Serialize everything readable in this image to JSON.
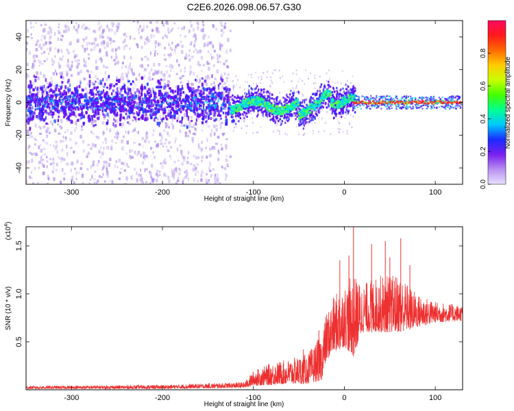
{
  "title": "C2E6.2026.098.06.57.G30",
  "colors": {
    "snr_line": "#ee3030",
    "spectrogram_base": "#5a00ff",
    "peak_trace": "#ff2a2a",
    "axis": "#000000"
  },
  "chart_data": [
    {
      "type": "heatmap",
      "xlabel": "Height of straight line (km)",
      "ylabel": "Frequency (Hz)",
      "xlim": [
        -350,
        130
      ],
      "ylim": [
        -50,
        50
      ],
      "x_ticks": [
        -300,
        -200,
        -100,
        0,
        100
      ],
      "y_ticks": [
        -40,
        -20,
        0,
        20,
        40
      ],
      "grid": false,
      "colorbar": {
        "label": "Normalized spectral amplitude",
        "range": [
          0,
          1
        ],
        "ticks": [
          "0.0",
          "0.2",
          "0.4",
          "0.6",
          "0.8"
        ],
        "colormap": [
          "#e6e0ff",
          "#b890f0",
          "#7a1ff0",
          "#1a2bff",
          "#00c8ff",
          "#00ff90",
          "#44ff00",
          "#c8ff00",
          "#ffcc00",
          "#ff6a00",
          "#ff1a1a",
          "#ff0a60"
        ]
      },
      "regions": [
        {
          "x_range": [
            -350,
            -125
          ],
          "note": "broad diffuse noise, strong band -10 to +10 Hz"
        },
        {
          "x_range": [
            -125,
            10
          ],
          "note": "cyan/green core near 0 Hz, wandering between -10 and +5 Hz"
        },
        {
          "x_range": [
            10,
            130
          ],
          "note": "narrow red peak at about 0 Hz"
        }
      ]
    },
    {
      "type": "line",
      "xlabel": "Height of straight line (km)",
      "ylabel": "SNR (10 * v/v)",
      "y_multiplier": "(x10",
      "y_multiplier_exp": "4",
      "y_multiplier_close": ")",
      "xlim": [
        -350,
        130
      ],
      "ylim": [
        0,
        1.7
      ],
      "x_ticks": [
        -300,
        -200,
        -100,
        0,
        100
      ],
      "y_ticks": [
        "0.5",
        "1.0",
        "1.5"
      ],
      "y_tick_values": [
        0.5,
        1.0,
        1.5
      ],
      "grid": false,
      "series": [
        {
          "color": "#ee3030",
          "envelope": [
            {
              "x": -350,
              "lo": 0.01,
              "hi": 0.04
            },
            {
              "x": -200,
              "lo": 0.01,
              "hi": 0.05
            },
            {
              "x": -110,
              "lo": 0.02,
              "hi": 0.08
            },
            {
              "x": -100,
              "lo": 0.04,
              "hi": 0.2
            },
            {
              "x": -80,
              "lo": 0.05,
              "hi": 0.28
            },
            {
              "x": -60,
              "lo": 0.06,
              "hi": 0.32
            },
            {
              "x": -40,
              "lo": 0.06,
              "hi": 0.38
            },
            {
              "x": -25,
              "lo": 0.1,
              "hi": 0.58
            },
            {
              "x": -20,
              "lo": 0.3,
              "hi": 0.8
            },
            {
              "x": -10,
              "lo": 0.4,
              "hi": 1.0
            },
            {
              "x": 0,
              "lo": 0.45,
              "hi": 1.1
            },
            {
              "x": 10,
              "lo": 0.35,
              "hi": 1.2
            },
            {
              "x": 20,
              "lo": 0.6,
              "hi": 1.1
            },
            {
              "x": 40,
              "lo": 0.6,
              "hi": 1.2
            },
            {
              "x": 60,
              "lo": 0.6,
              "hi": 1.2
            },
            {
              "x": 80,
              "lo": 0.65,
              "hi": 1.0
            },
            {
              "x": 100,
              "lo": 0.7,
              "hi": 0.92
            },
            {
              "x": 130,
              "lo": 0.72,
              "hi": 0.88
            }
          ],
          "spikes": [
            {
              "x": 10,
              "y": 1.7
            },
            {
              "x": 30,
              "y": 1.52
            },
            {
              "x": 45,
              "y": 1.55
            },
            {
              "x": 62,
              "y": 1.58
            },
            {
              "x": -5,
              "y": 1.35
            },
            {
              "x": 5,
              "y": 1.4
            },
            {
              "x": 50,
              "y": 1.38
            },
            {
              "x": 72,
              "y": 1.3
            },
            {
              "x": -28,
              "y": 0.62
            },
            {
              "x": -45,
              "y": 0.42
            }
          ]
        }
      ]
    }
  ]
}
